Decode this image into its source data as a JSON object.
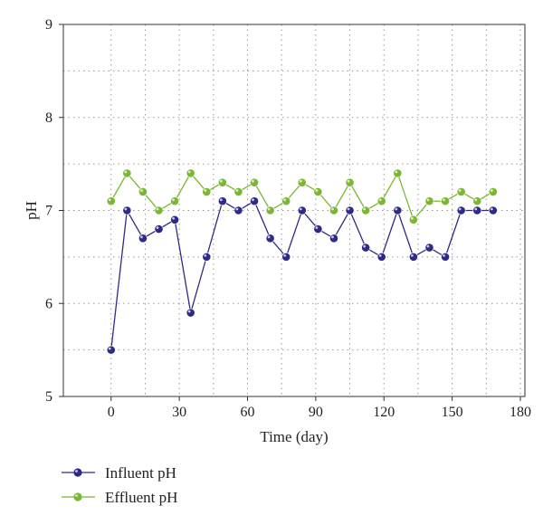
{
  "chart_data": {
    "type": "line",
    "title": "",
    "xlabel": "Time (day)",
    "ylabel": "pH",
    "xlim": [
      -21,
      182
    ],
    "ylim": [
      5,
      9
    ],
    "xticks": [
      0,
      30,
      60,
      90,
      120,
      150,
      180
    ],
    "yticks": [
      5,
      6,
      7,
      8,
      9
    ],
    "grid": true,
    "legend_position": "bottom-left",
    "x": [
      0,
      7,
      14,
      21,
      28,
      35,
      42,
      49,
      56,
      63,
      70,
      77,
      84,
      91,
      98,
      105,
      112,
      119,
      126,
      133,
      140,
      147,
      154,
      161,
      168
    ],
    "series": [
      {
        "name": "Influent pH",
        "color": "#2e2a86",
        "values": [
          5.5,
          7.0,
          6.7,
          6.8,
          6.9,
          5.9,
          6.5,
          7.1,
          7.0,
          7.1,
          6.7,
          6.5,
          7.0,
          6.8,
          6.7,
          7.0,
          6.6,
          6.5,
          7.0,
          6.5,
          6.6,
          6.5,
          7.0,
          7.0,
          7.0
        ]
      },
      {
        "name": "Effluent pH",
        "color": "#7ab734",
        "values": [
          7.1,
          7.4,
          7.2,
          7.0,
          7.1,
          7.4,
          7.2,
          7.3,
          7.2,
          7.3,
          7.0,
          7.1,
          7.3,
          7.2,
          7.0,
          7.3,
          7.0,
          7.1,
          7.4,
          6.9,
          7.1,
          7.1,
          7.2,
          7.1,
          7.2
        ]
      }
    ]
  }
}
